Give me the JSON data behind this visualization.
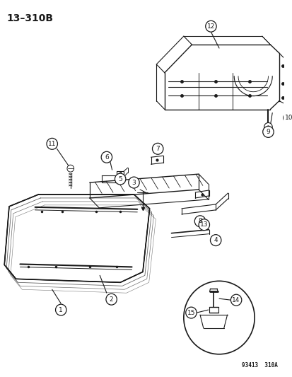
{
  "title": "13–310B",
  "footer": "93413  310A",
  "bg_color": "#ffffff",
  "line_color": "#1a1a1a",
  "fig_width": 4.14,
  "fig_height": 5.33,
  "dpi": 100
}
